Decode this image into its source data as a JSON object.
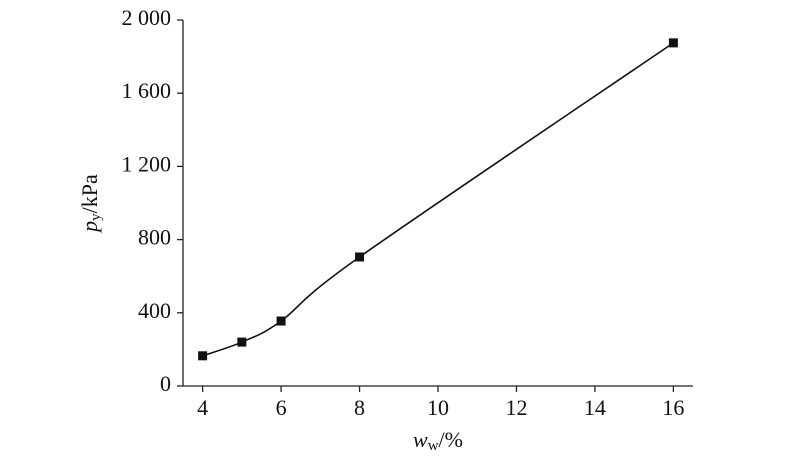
{
  "chart_data": {
    "type": "line",
    "x_label": [
      "w",
      "w",
      "/%"
    ],
    "y_label": [
      "p",
      "y",
      "/kPa"
    ],
    "x": [
      4,
      5,
      6,
      8,
      16
    ],
    "series": [
      {
        "color": "#111111",
        "values": [
          165,
          240,
          355,
          705,
          1875
        ]
      }
    ],
    "xlim": [
      3.5,
      16.5
    ],
    "xticks": [
      4,
      6,
      8,
      10,
      12,
      14,
      16
    ],
    "ylim": [
      0,
      2000
    ],
    "yticks": [
      0,
      400,
      800,
      {
        "value": 1200,
        "label": "1 200"
      },
      {
        "value": 1600,
        "label": "1 600"
      },
      {
        "value": 2000,
        "label": "2 000"
      }
    ],
    "grid": false
  }
}
